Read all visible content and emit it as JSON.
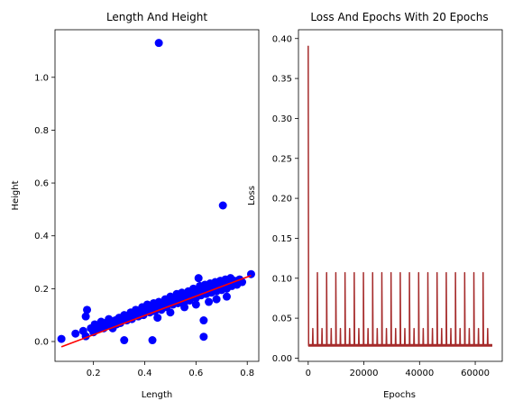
{
  "chart_data": [
    {
      "type": "scatter",
      "title": "Length And Height",
      "xlabel": "Length",
      "ylabel": "Height",
      "xlim": [
        0.05,
        0.845
      ],
      "ylim": [
        -0.075,
        1.18
      ],
      "xticks": [
        0.2,
        0.4,
        0.6,
        0.8
      ],
      "xtick_labels": [
        "0.2",
        "0.4",
        "0.6",
        "0.8"
      ],
      "yticks": [
        0.0,
        0.2,
        0.4,
        0.6,
        0.8,
        1.0
      ],
      "ytick_labels": [
        "0.0",
        "0.2",
        "0.4",
        "0.6",
        "0.8",
        "1.0"
      ],
      "grid": false,
      "colors": {
        "points": "#0000ff",
        "fit": "#ff0000"
      },
      "points": [
        {
          "x": 0.075,
          "y": 0.01
        },
        {
          "x": 0.13,
          "y": 0.03
        },
        {
          "x": 0.16,
          "y": 0.04
        },
        {
          "x": 0.17,
          "y": 0.02
        },
        {
          "x": 0.175,
          "y": 0.12
        },
        {
          "x": 0.17,
          "y": 0.095
        },
        {
          "x": 0.19,
          "y": 0.05
        },
        {
          "x": 0.2,
          "y": 0.035
        },
        {
          "x": 0.205,
          "y": 0.065
        },
        {
          "x": 0.215,
          "y": 0.045
        },
        {
          "x": 0.225,
          "y": 0.06
        },
        {
          "x": 0.23,
          "y": 0.075
        },
        {
          "x": 0.24,
          "y": 0.05
        },
        {
          "x": 0.245,
          "y": 0.07
        },
        {
          "x": 0.255,
          "y": 0.06
        },
        {
          "x": 0.26,
          "y": 0.085
        },
        {
          "x": 0.27,
          "y": 0.07
        },
        {
          "x": 0.275,
          "y": 0.05
        },
        {
          "x": 0.285,
          "y": 0.08
        },
        {
          "x": 0.29,
          "y": 0.065
        },
        {
          "x": 0.3,
          "y": 0.09
        },
        {
          "x": 0.305,
          "y": 0.07
        },
        {
          "x": 0.315,
          "y": 0.085
        },
        {
          "x": 0.32,
          "y": 0.1
        },
        {
          "x": 0.33,
          "y": 0.08
        },
        {
          "x": 0.335,
          "y": 0.095
        },
        {
          "x": 0.345,
          "y": 0.11
        },
        {
          "x": 0.35,
          "y": 0.085
        },
        {
          "x": 0.36,
          "y": 0.1
        },
        {
          "x": 0.365,
          "y": 0.12
        },
        {
          "x": 0.375,
          "y": 0.095
        },
        {
          "x": 0.38,
          "y": 0.11
        },
        {
          "x": 0.39,
          "y": 0.13
        },
        {
          "x": 0.395,
          "y": 0.1
        },
        {
          "x": 0.405,
          "y": 0.12
        },
        {
          "x": 0.41,
          "y": 0.14
        },
        {
          "x": 0.42,
          "y": 0.11
        },
        {
          "x": 0.425,
          "y": 0.125
        },
        {
          "x": 0.435,
          "y": 0.145
        },
        {
          "x": 0.44,
          "y": 0.115
        },
        {
          "x": 0.45,
          "y": 0.13
        },
        {
          "x": 0.455,
          "y": 0.15
        },
        {
          "x": 0.465,
          "y": 0.12
        },
        {
          "x": 0.47,
          "y": 0.14
        },
        {
          "x": 0.48,
          "y": 0.16
        },
        {
          "x": 0.485,
          "y": 0.13
        },
        {
          "x": 0.495,
          "y": 0.15
        },
        {
          "x": 0.5,
          "y": 0.17
        },
        {
          "x": 0.51,
          "y": 0.14
        },
        {
          "x": 0.515,
          "y": 0.16
        },
        {
          "x": 0.525,
          "y": 0.18
        },
        {
          "x": 0.53,
          "y": 0.145
        },
        {
          "x": 0.54,
          "y": 0.165
        },
        {
          "x": 0.545,
          "y": 0.185
        },
        {
          "x": 0.555,
          "y": 0.15
        },
        {
          "x": 0.56,
          "y": 0.17
        },
        {
          "x": 0.57,
          "y": 0.19
        },
        {
          "x": 0.575,
          "y": 0.155
        },
        {
          "x": 0.585,
          "y": 0.175
        },
        {
          "x": 0.59,
          "y": 0.2
        },
        {
          "x": 0.6,
          "y": 0.165
        },
        {
          "x": 0.605,
          "y": 0.185
        },
        {
          "x": 0.61,
          "y": 0.24
        },
        {
          "x": 0.615,
          "y": 0.21
        },
        {
          "x": 0.62,
          "y": 0.175
        },
        {
          "x": 0.625,
          "y": 0.195
        },
        {
          "x": 0.635,
          "y": 0.215
        },
        {
          "x": 0.64,
          "y": 0.18
        },
        {
          "x": 0.645,
          "y": 0.2
        },
        {
          "x": 0.655,
          "y": 0.22
        },
        {
          "x": 0.66,
          "y": 0.185
        },
        {
          "x": 0.665,
          "y": 0.205
        },
        {
          "x": 0.675,
          "y": 0.225
        },
        {
          "x": 0.68,
          "y": 0.19
        },
        {
          "x": 0.685,
          "y": 0.21
        },
        {
          "x": 0.695,
          "y": 0.23
        },
        {
          "x": 0.7,
          "y": 0.195
        },
        {
          "x": 0.705,
          "y": 0.215
        },
        {
          "x": 0.715,
          "y": 0.235
        },
        {
          "x": 0.72,
          "y": 0.2
        },
        {
          "x": 0.725,
          "y": 0.22
        },
        {
          "x": 0.735,
          "y": 0.24
        },
        {
          "x": 0.74,
          "y": 0.21
        },
        {
          "x": 0.75,
          "y": 0.23
        },
        {
          "x": 0.76,
          "y": 0.215
        },
        {
          "x": 0.77,
          "y": 0.235
        },
        {
          "x": 0.78,
          "y": 0.225
        },
        {
          "x": 0.815,
          "y": 0.255
        },
        {
          "x": 0.555,
          "y": 0.13
        },
        {
          "x": 0.6,
          "y": 0.14
        },
        {
          "x": 0.63,
          "y": 0.08
        },
        {
          "x": 0.65,
          "y": 0.15
        },
        {
          "x": 0.5,
          "y": 0.11
        },
        {
          "x": 0.45,
          "y": 0.09
        },
        {
          "x": 0.68,
          "y": 0.16
        },
        {
          "x": 0.72,
          "y": 0.17
        },
        {
          "x": 0.32,
          "y": 0.005
        },
        {
          "x": 0.43,
          "y": 0.005
        },
        {
          "x": 0.63,
          "y": 0.018
        },
        {
          "x": 0.705,
          "y": 0.515
        },
        {
          "x": 0.455,
          "y": 1.13
        }
      ],
      "fit_line": {
        "x": [
          0.075,
          0.815
        ],
        "y": [
          -0.02,
          0.25
        ]
      }
    },
    {
      "type": "line",
      "title": "Loss And Epochs With 20 Epochs",
      "xlabel": "Epochs",
      "ylabel": "Loss",
      "xlim": [
        -3500,
        69700
      ],
      "ylim": [
        -0.004,
        0.411
      ],
      "xticks": [
        0,
        20000,
        40000,
        60000
      ],
      "xtick_labels": [
        "0",
        "20000",
        "40000",
        "60000"
      ],
      "yticks": [
        0.0,
        0.05,
        0.1,
        0.15,
        0.2,
        0.25,
        0.3,
        0.35,
        0.4
      ],
      "ytick_labels": [
        "0.00",
        "0.05",
        "0.10",
        "0.15",
        "0.20",
        "0.25",
        "0.30",
        "0.35",
        "0.40"
      ],
      "grid": false,
      "colors": {
        "line": "#a52a2a"
      },
      "series": [
        {
          "baseline": 0.016,
          "epoch_length": 3306,
          "epoch_count": 20,
          "initial_peak": 0.391,
          "epoch_start_peak": 0.107,
          "mid_epoch_peak": 0.037,
          "x_max": 66120
        }
      ]
    }
  ]
}
